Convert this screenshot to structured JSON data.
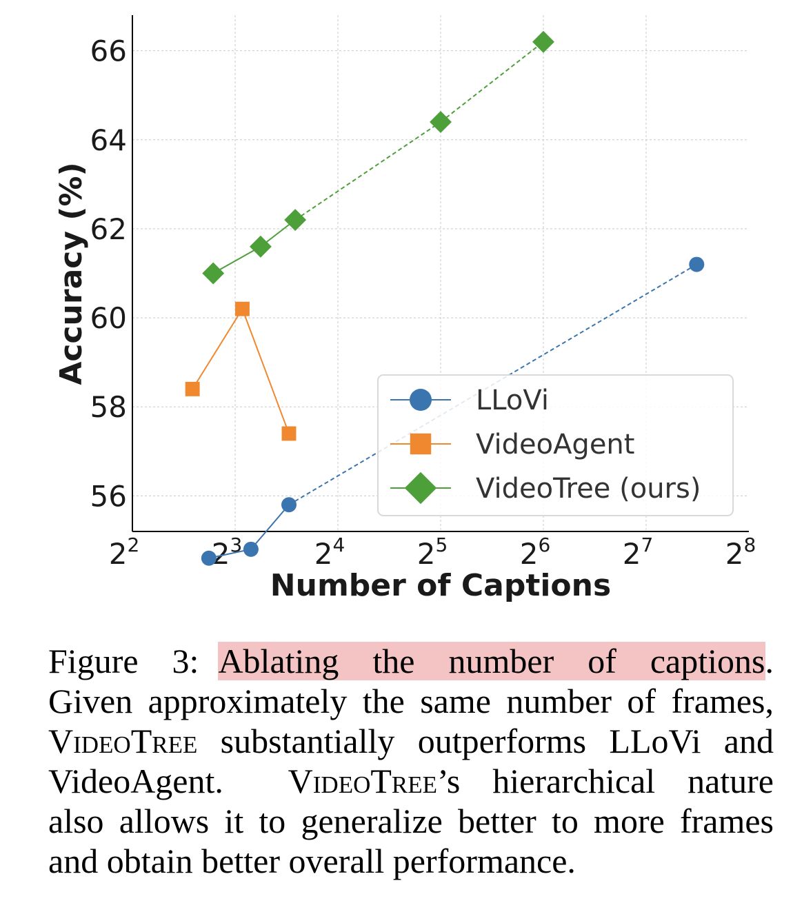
{
  "chart_data": {
    "type": "line",
    "xlabel": "Number of Captions",
    "ylabel": "Accuracy (%)",
    "xscale": "log2",
    "xlim": [
      4,
      256
    ],
    "ylim": [
      55.2,
      66.8
    ],
    "x_ticks": [
      {
        "base": "2",
        "exp": "2",
        "value": 4
      },
      {
        "base": "2",
        "exp": "3",
        "value": 8
      },
      {
        "base": "2",
        "exp": "4",
        "value": 16
      },
      {
        "base": "2",
        "exp": "5",
        "value": 32
      },
      {
        "base": "2",
        "exp": "6",
        "value": 64
      },
      {
        "base": "2",
        "exp": "7",
        "value": 128
      },
      {
        "base": "2",
        "exp": "8",
        "value": 256
      }
    ],
    "y_ticks": [
      "56",
      "58",
      "60",
      "62",
      "64",
      "66"
    ],
    "grid": true,
    "legend_position": "lower-right",
    "series": [
      {
        "name": "LLoVi",
        "color": "#3a75b0",
        "marker": "circle",
        "x": [
          6.7,
          8.9,
          11.5,
          180
        ],
        "y": [
          54.6,
          54.8,
          55.8,
          61.2
        ],
        "dashed_from_index": 2
      },
      {
        "name": "VideoAgent",
        "color": "#f0882f",
        "marker": "square",
        "x": [
          6.0,
          8.4,
          11.5
        ],
        "y": [
          58.4,
          60.2,
          57.4
        ],
        "dashed_from_index": -1
      },
      {
        "name": "VideoTree (ours)",
        "color": "#4d9f3a",
        "marker": "diamond",
        "x": [
          6.9,
          9.5,
          12.0,
          32,
          64
        ],
        "y": [
          61.0,
          61.6,
          62.2,
          64.4,
          66.2
        ],
        "dashed_from_index": 2
      }
    ]
  },
  "caption": {
    "label": "Figure 3:",
    "highlight": "Ablating the number of captions",
    "end_period": ".",
    "line2": "Given approximately the same number of frames,",
    "line3_sc": "VideoTree",
    "line3_rest": " substantially outperforms LLoVi and",
    "line4_a": "VideoAgent.",
    "line4_sc": "VideoTree",
    "line4_rest": "’s hierarchical nature",
    "line5": "also allows it to generalize better to more frames",
    "line6": "and obtain better overall performance."
  }
}
